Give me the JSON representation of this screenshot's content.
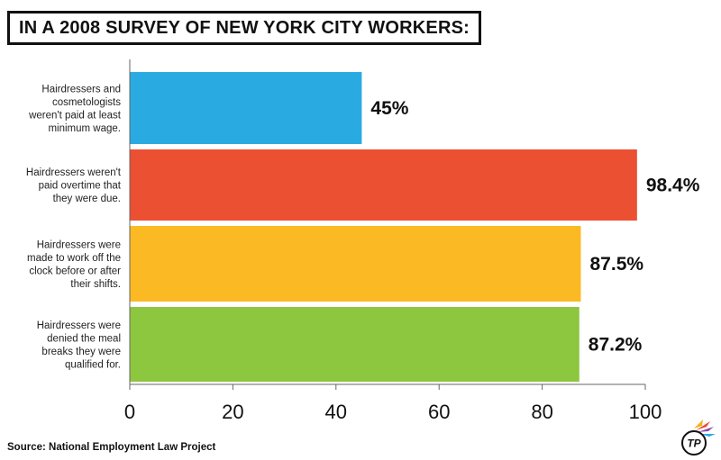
{
  "header": {
    "title": "IN A 2008 SURVEY OF NEW YORK CITY WORKERS:"
  },
  "chart_data": {
    "type": "bar",
    "orientation": "horizontal",
    "title": "IN A 2008 SURVEY OF NEW YORK CITY WORKERS:",
    "xlabel": "",
    "ylabel": "",
    "xlim": [
      0,
      100
    ],
    "xticks": [
      0,
      20,
      40,
      60,
      80,
      100
    ],
    "grid": false,
    "legend": "none",
    "categories": [
      "Hairdressers and cosmetologists weren't paid at least minimum wage.",
      "Hairdressers weren't paid overtime that they were due.",
      "Hairdressers were made to work off the clock before or after their shifts.",
      "Hairdressers were denied the meal breaks they were qualified for."
    ],
    "category_lines": [
      [
        "Hairdressers and",
        "cosmetologists",
        "weren't paid at least",
        "minimum wage."
      ],
      [
        "Hairdressers weren't",
        "paid overtime that",
        "they were due."
      ],
      [
        "Hairdressers were",
        "made to work off the",
        "clock before or after",
        "their shifts."
      ],
      [
        "Hairdressers were",
        "denied the meal",
        "breaks they were",
        "qualified for."
      ]
    ],
    "values": [
      45,
      98.4,
      87.5,
      87.2
    ],
    "value_labels": [
      "45%",
      "98.4%",
      "87.5%",
      "87.2%"
    ],
    "colors": [
      "#29ABE2",
      "#EB5033",
      "#FBBA23",
      "#8DC63F"
    ]
  },
  "footer": {
    "source": "Source: National Employment Law Project"
  },
  "logo": {
    "icon": "thinkprogress-logo-icon",
    "text": "TP"
  }
}
